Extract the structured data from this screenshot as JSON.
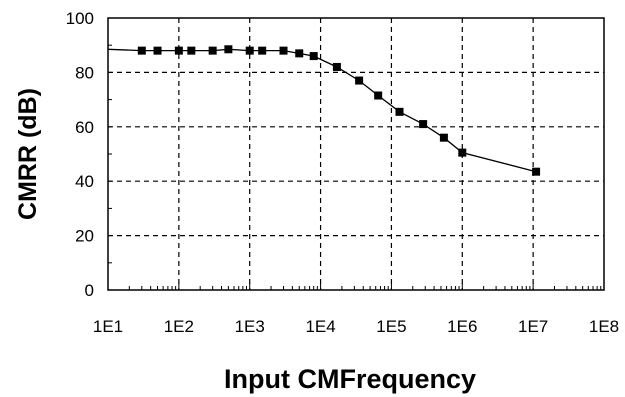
{
  "chart_data": {
    "type": "scatter",
    "xscale": "log",
    "xlabel": "Input CMFrequency",
    "ylabel": "CMRR (dB)",
    "xlim": [
      10,
      100000000
    ],
    "ylim": [
      0,
      100
    ],
    "x_ticks": [
      "1E1",
      "1E2",
      "1E3",
      "1E4",
      "1E5",
      "1E6",
      "1E7",
      "1E8"
    ],
    "y_ticks": [
      "0",
      "20",
      "40",
      "60",
      "80",
      "100"
    ],
    "grid": true,
    "legend": "none",
    "series": [
      {
        "x": [
          10,
          30,
          50,
          100,
          150,
          300,
          500,
          1000,
          1500,
          3000,
          5000,
          8000,
          17000,
          35000,
          65000,
          130000,
          280000,
          550000,
          1000000,
          11000000
        ],
        "y": [
          88.5,
          88,
          88,
          88,
          88,
          88,
          88.5,
          88,
          88,
          88,
          87,
          86,
          82,
          77,
          71.5,
          65.5,
          61,
          56,
          50.5,
          43.5
        ],
        "marker_from_index": 1,
        "color": "#000000"
      }
    ]
  }
}
